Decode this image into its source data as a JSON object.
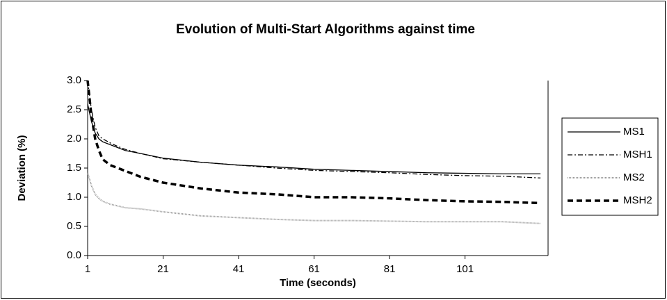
{
  "chart_data": {
    "type": "line",
    "title": "Evolution of Multi-Start Algorithms against time",
    "x_label": "Time (seconds)",
    "y_label": "Deviation (%)",
    "x": [
      1,
      2,
      3,
      4,
      5,
      7,
      9,
      11,
      15,
      21,
      31,
      41,
      51,
      61,
      71,
      81,
      91,
      101,
      111,
      121
    ],
    "series": [
      {
        "name": "MS1",
        "color": "#000000",
        "dash": "none",
        "width": 1.3,
        "values": [
          2.6,
          2.3,
          2.1,
          2.0,
          1.95,
          1.9,
          1.85,
          1.8,
          1.75,
          1.67,
          1.6,
          1.55,
          1.52,
          1.48,
          1.46,
          1.44,
          1.42,
          1.41,
          1.4,
          1.4
        ]
      },
      {
        "name": "MSH1",
        "color": "#000000",
        "dash": "7 3 2 3",
        "width": 1.3,
        "values": [
          3.0,
          2.5,
          2.2,
          2.05,
          2.0,
          1.93,
          1.87,
          1.82,
          1.75,
          1.66,
          1.6,
          1.55,
          1.5,
          1.46,
          1.44,
          1.42,
          1.39,
          1.37,
          1.36,
          1.33
        ]
      },
      {
        "name": "MS2",
        "color": "#999999",
        "dash": "1 1",
        "width": 2,
        "values": [
          1.42,
          1.2,
          1.05,
          0.98,
          0.93,
          0.88,
          0.85,
          0.82,
          0.8,
          0.75,
          0.68,
          0.65,
          0.62,
          0.6,
          0.6,
          0.59,
          0.58,
          0.58,
          0.58,
          0.55
        ]
      },
      {
        "name": "MSH2",
        "color": "#000000",
        "dash": "8 5",
        "width": 3.5,
        "values": [
          3.0,
          2.4,
          2.0,
          1.8,
          1.65,
          1.55,
          1.5,
          1.45,
          1.35,
          1.25,
          1.15,
          1.08,
          1.05,
          1.0,
          1.0,
          0.98,
          0.95,
          0.93,
          0.92,
          0.9
        ]
      }
    ],
    "xlim": [
      1,
      123
    ],
    "xticks": [
      1,
      21,
      41,
      61,
      81,
      101
    ],
    "ylim": [
      0,
      3
    ],
    "yticks": [
      {
        "value": 0,
        "label": "0.0"
      },
      {
        "value": 0.5,
        "label": "0.5"
      },
      {
        "value": 1,
        "label": "1.0"
      },
      {
        "value": 1.5,
        "label": "1.5"
      },
      {
        "value": 2,
        "label": "2.0"
      },
      {
        "value": 2.5,
        "label": "2.5"
      },
      {
        "value": 3,
        "label": "3.0"
      }
    ],
    "legend": "right"
  }
}
